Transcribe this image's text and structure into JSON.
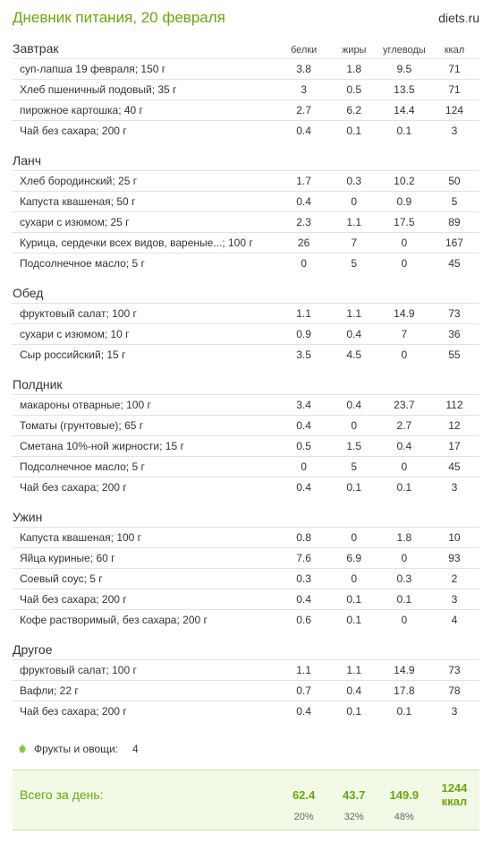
{
  "page_title": "Дневник питания, 20 февраля",
  "logo": {
    "prefix": "diets",
    "dot": ".",
    "suffix": "ru"
  },
  "column_headers": [
    "белки",
    "жиры",
    "углеводы",
    "ккал"
  ],
  "sections": [
    {
      "name": "Завтрак",
      "show_headers": true,
      "rows": [
        {
          "name": "суп-лапша 19 февраля; 150 г",
          "v": [
            "3.8",
            "1.8",
            "9.5",
            "71"
          ]
        },
        {
          "name": "Хлеб пшеничный подовый; 35 г",
          "v": [
            "3",
            "0.5",
            "13.5",
            "71"
          ]
        },
        {
          "name": "пирожное картошка; 40 г",
          "v": [
            "2.7",
            "6.2",
            "14.4",
            "124"
          ]
        },
        {
          "name": "Чай без сахара; 200 г",
          "v": [
            "0.4",
            "0.1",
            "0.1",
            "3"
          ]
        }
      ]
    },
    {
      "name": "Ланч",
      "show_headers": false,
      "rows": [
        {
          "name": "Хлеб бородинский; 25 г",
          "v": [
            "1.7",
            "0.3",
            "10.2",
            "50"
          ]
        },
        {
          "name": "Капуста квашеная; 50 г",
          "v": [
            "0.4",
            "0",
            "0.9",
            "5"
          ]
        },
        {
          "name": "сухари с изюмом; 25 г",
          "v": [
            "2.3",
            "1.1",
            "17.5",
            "89"
          ]
        },
        {
          "name": "Курица, сердечки всех видов, вареные...; 100 г",
          "v": [
            "26",
            "7",
            "0",
            "167"
          ]
        },
        {
          "name": "Подсолнечное масло; 5 г",
          "v": [
            "0",
            "5",
            "0",
            "45"
          ]
        }
      ]
    },
    {
      "name": "Обед",
      "show_headers": false,
      "rows": [
        {
          "name": "фруктовый салат; 100 г",
          "v": [
            "1.1",
            "1.1",
            "14.9",
            "73"
          ]
        },
        {
          "name": "сухари с изюмом; 10 г",
          "v": [
            "0.9",
            "0.4",
            "7",
            "36"
          ]
        },
        {
          "name": "Сыр российский; 15 г",
          "v": [
            "3.5",
            "4.5",
            "0",
            "55"
          ]
        }
      ]
    },
    {
      "name": "Полдник",
      "show_headers": false,
      "rows": [
        {
          "name": "макароны отварные; 100 г",
          "v": [
            "3.4",
            "0.4",
            "23.7",
            "112"
          ]
        },
        {
          "name": "Томаты (грунтовые); 65 г",
          "v": [
            "0.4",
            "0",
            "2.7",
            "12"
          ]
        },
        {
          "name": "Сметана 10%-ной жирности; 15 г",
          "v": [
            "0.5",
            "1.5",
            "0.4",
            "17"
          ]
        },
        {
          "name": "Подсолнечное масло; 5 г",
          "v": [
            "0",
            "5",
            "0",
            "45"
          ]
        },
        {
          "name": "Чай без сахара; 200 г",
          "v": [
            "0.4",
            "0.1",
            "0.1",
            "3"
          ]
        }
      ]
    },
    {
      "name": "Ужин",
      "show_headers": false,
      "rows": [
        {
          "name": "Капуста квашеная; 100 г",
          "v": [
            "0.8",
            "0",
            "1.8",
            "10"
          ]
        },
        {
          "name": "Яйца куриные; 60 г",
          "v": [
            "7.6",
            "6.9",
            "0",
            "93"
          ]
        },
        {
          "name": "Соевый соус; 5 г",
          "v": [
            "0.3",
            "0",
            "0.3",
            "2"
          ]
        },
        {
          "name": "Чай без сахара; 200 г",
          "v": [
            "0.4",
            "0.1",
            "0.1",
            "3"
          ]
        },
        {
          "name": "Кофе растворимый, без сахара; 200 г",
          "v": [
            "0.6",
            "0.1",
            "0",
            "4"
          ]
        }
      ]
    },
    {
      "name": "Другое",
      "show_headers": false,
      "rows": [
        {
          "name": "фруктовый салат; 100 г",
          "v": [
            "1.1",
            "1.1",
            "14.9",
            "73"
          ]
        },
        {
          "name": "Вафли; 22 г",
          "v": [
            "0.7",
            "0.4",
            "17.8",
            "78"
          ]
        },
        {
          "name": "Чай без сахара; 200 г",
          "v": [
            "0.4",
            "0.1",
            "0.1",
            "3"
          ]
        }
      ]
    }
  ],
  "fruits": {
    "label": "Фрукты и овощи:",
    "value": "4"
  },
  "totals": {
    "label": "Всего за день:",
    "values": [
      "62.4",
      "43.7",
      "149.9",
      "1244 ккал"
    ],
    "percents": [
      "20%",
      "32%",
      "48%",
      ""
    ]
  },
  "colors": {
    "accent": "#6aa80a",
    "border": "#e2e2e2",
    "totals_bg": "#f2f9e6",
    "totals_border": "#cde2a6"
  }
}
